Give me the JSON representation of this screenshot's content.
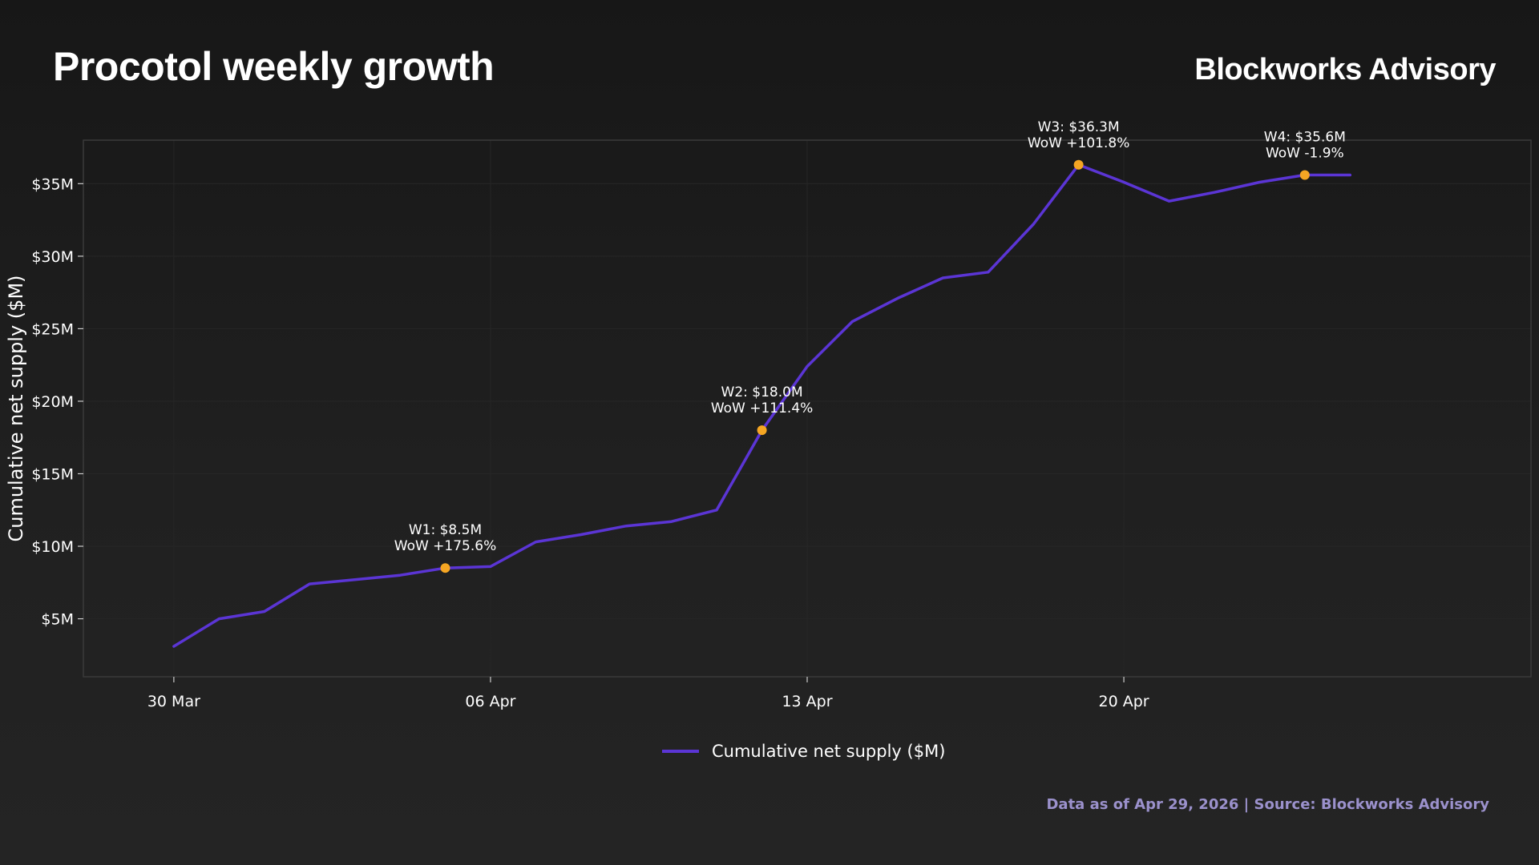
{
  "header": {
    "title": "Procotol weekly growth",
    "brand": "Blockworks Advisory"
  },
  "footer": {
    "source": "Data as of Apr 29, 2026 | Source: Blockworks Advisory"
  },
  "colors": {
    "line": "#5b35d5",
    "marker": "#f5a623",
    "footer_text": "#9b91cc",
    "axis_frame": "#3a3a3a",
    "grid": "#262626"
  },
  "chart_data": {
    "type": "line",
    "title": "Procotol weekly growth",
    "ylabel": "Cumulative net supply ($M)",
    "xlabel": "",
    "grid": true,
    "legend_position": "bottom-center",
    "xlim": [
      "2026-03-28",
      "2026-04-29"
    ],
    "ylim": [
      1.0,
      38.0
    ],
    "x_ticks": [
      {
        "date": "2026-03-30",
        "label": "30 Mar"
      },
      {
        "date": "2026-04-06",
        "label": "06 Apr"
      },
      {
        "date": "2026-04-13",
        "label": "13 Apr"
      },
      {
        "date": "2026-04-20",
        "label": "20 Apr"
      }
    ],
    "y_ticks": [
      {
        "value": 5,
        "label": "$5M"
      },
      {
        "value": 10,
        "label": "$10M"
      },
      {
        "value": 15,
        "label": "$15M"
      },
      {
        "value": 20,
        "label": "$20M"
      },
      {
        "value": 25,
        "label": "$25M"
      },
      {
        "value": 30,
        "label": "$30M"
      },
      {
        "value": 35,
        "label": "$35M"
      }
    ],
    "series": [
      {
        "name": "Cumulative net supply ($M)",
        "x": [
          "2026-03-30",
          "2026-03-31",
          "2026-04-01",
          "2026-04-02",
          "2026-04-03",
          "2026-04-04",
          "2026-04-05",
          "2026-04-06",
          "2026-04-07",
          "2026-04-08",
          "2026-04-09",
          "2026-04-10",
          "2026-04-11",
          "2026-04-12",
          "2026-04-13",
          "2026-04-14",
          "2026-04-15",
          "2026-04-16",
          "2026-04-17",
          "2026-04-18",
          "2026-04-19",
          "2026-04-20",
          "2026-04-21",
          "2026-04-22",
          "2026-04-23",
          "2026-04-24",
          "2026-04-25"
        ],
        "y": [
          3.1,
          5.0,
          5.5,
          7.4,
          7.7,
          8.0,
          8.5,
          8.6,
          10.3,
          10.8,
          11.4,
          11.7,
          12.5,
          18.0,
          22.4,
          25.5,
          27.1,
          28.5,
          28.9,
          32.2,
          36.3,
          35.1,
          33.8,
          34.4,
          35.1,
          35.6,
          35.6
        ]
      }
    ],
    "annotations": [
      {
        "x": "2026-04-05",
        "y": 8.5,
        "label": "W1: $8.5M",
        "sub": "WoW +175.6%"
      },
      {
        "x": "2026-04-12",
        "y": 18.0,
        "label": "W2: $18.0M",
        "sub": "WoW +111.4%"
      },
      {
        "x": "2026-04-19",
        "y": 36.3,
        "label": "W3: $36.3M",
        "sub": "WoW +101.8%"
      },
      {
        "x": "2026-04-24",
        "y": 35.6,
        "label": "W4: $35.6M",
        "sub": "WoW -1.9%"
      }
    ]
  }
}
